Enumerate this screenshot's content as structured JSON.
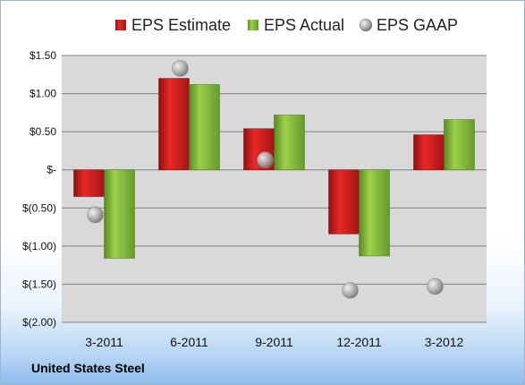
{
  "company": "United States Steel",
  "colors": {
    "estimate": "#e02020",
    "actual": "#8cc63e",
    "gaap": "#a8a8a8",
    "plot_bg": "#d9d9d9",
    "grid": "#7f7f7f"
  },
  "chart_data": {
    "type": "bar",
    "title": "",
    "xlabel": "",
    "ylabel": "",
    "categories": [
      "3-2011",
      "6-2011",
      "9-2011",
      "12-2011",
      "3-2012"
    ],
    "series": [
      {
        "name": "EPS Estimate",
        "kind": "bar",
        "values": [
          -0.35,
          1.2,
          0.54,
          -0.84,
          0.46
        ]
      },
      {
        "name": "EPS Actual",
        "kind": "bar",
        "values": [
          -1.16,
          1.12,
          0.72,
          -1.13,
          0.66
        ]
      },
      {
        "name": "EPS GAAP",
        "kind": "marker",
        "values": [
          -0.59,
          1.33,
          0.13,
          -1.58,
          -1.53
        ]
      }
    ],
    "ylim": [
      -2.0,
      1.5
    ],
    "yticks": [
      1.5,
      1.0,
      0.5,
      0,
      -0.5,
      -1.0,
      -1.5,
      -2.0
    ],
    "ytick_labels": [
      "$1.50",
      "$1.00",
      "$0.50",
      "$-",
      "$(0.50)",
      "$(1.00)",
      "$(1.50)",
      "$(2.00)"
    ],
    "grid": true,
    "legend_position": "top"
  }
}
